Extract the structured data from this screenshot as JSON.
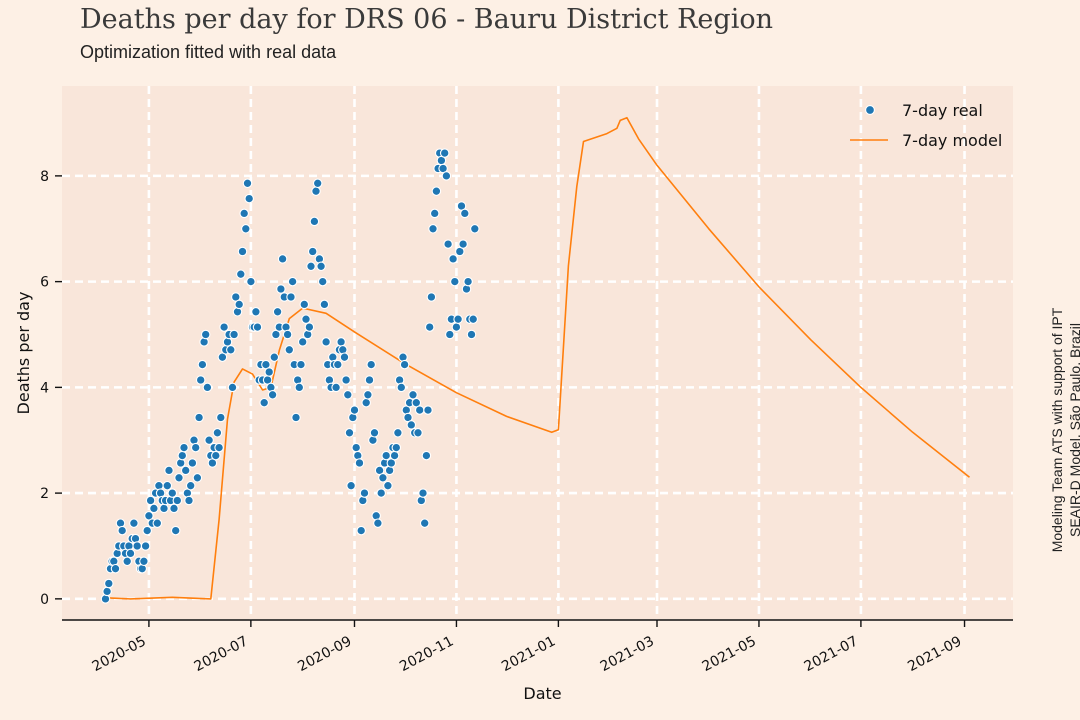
{
  "header": {
    "title": "Deaths per day for DRS 06 - Bauru District Region",
    "subtitle": "Optimization fitted with real data"
  },
  "side_note": {
    "line1": "Modeling Team ATS with support of IPT",
    "line2": "SEAIR-D Model, São Paulo, Brazil"
  },
  "chart_data": {
    "type": "line",
    "xlabel": "Date",
    "ylabel": "Deaths per day",
    "x_ticks": [
      "2020-05",
      "2020-07",
      "2020-09",
      "2020-11",
      "2021-01",
      "2021-03",
      "2021-05",
      "2021-07",
      "2021-09"
    ],
    "y_ticks": [
      0,
      2,
      4,
      6,
      8
    ],
    "xlim": [
      "2020-03-10",
      "2021-09-30"
    ],
    "ylim": [
      -0.4,
      9.7
    ],
    "grid": true,
    "legend_position": "top-right",
    "colors": {
      "real": "#1f77b4",
      "model": "#ff7f0e"
    },
    "series": [
      {
        "name": "7-day real",
        "kind": "scatter",
        "start": "2020-04-05",
        "values": [
          0.0,
          0.14,
          0.29,
          0.57,
          0.71,
          0.71,
          0.57,
          0.86,
          1.0,
          1.43,
          1.29,
          1.0,
          0.86,
          0.71,
          1.0,
          0.86,
          1.14,
          1.43,
          1.14,
          1.0,
          0.71,
          0.57,
          0.57,
          0.71,
          1.0,
          1.29,
          1.57,
          1.86,
          1.43,
          1.71,
          2.0,
          1.43,
          2.14,
          2.0,
          1.86,
          1.71,
          1.86,
          2.14,
          2.43,
          1.86,
          2.0,
          1.71,
          1.29,
          1.86,
          2.29,
          2.57,
          2.71,
          2.86,
          2.43,
          2.0,
          1.86,
          2.14,
          2.57,
          3.0,
          2.86,
          2.29,
          3.43,
          4.14,
          4.43,
          4.86,
          5.0,
          4.0,
          3.0,
          2.71,
          2.57,
          2.86,
          2.71,
          3.14,
          2.86,
          3.43,
          4.57,
          5.14,
          4.71,
          4.86,
          5.0,
          4.71,
          4.0,
          5.0,
          5.71,
          5.43,
          5.57,
          6.14,
          6.57,
          7.29,
          7.0,
          7.86,
          7.57,
          6.0,
          5.14,
          5.14,
          5.43,
          5.14,
          4.14,
          4.43,
          4.14,
          3.71,
          4.43,
          4.14,
          4.29,
          4.0,
          3.86,
          4.57,
          5.0,
          5.43,
          5.14,
          5.86,
          6.43,
          5.71,
          5.14,
          5.0,
          4.71,
          5.71,
          6.0,
          4.43,
          3.43,
          4.14,
          4.0,
          4.43,
          4.86,
          5.57,
          5.29,
          5.0,
          5.14,
          6.29,
          6.57,
          7.14,
          7.71,
          7.86,
          6.43,
          6.29,
          6.0,
          5.57,
          4.86,
          4.43,
          4.14,
          4.0,
          4.57,
          4.43,
          4.0,
          4.43,
          4.71,
          4.86,
          4.71,
          4.57,
          4.14,
          3.86,
          3.14,
          2.14,
          3.43,
          3.57,
          2.86,
          2.71,
          2.57,
          1.29,
          1.86,
          2.0,
          3.71,
          3.86,
          4.14,
          4.43,
          3.0,
          3.14,
          1.57,
          1.43,
          2.43,
          2.0,
          2.29,
          2.57,
          2.71,
          2.14,
          2.43,
          2.57,
          2.86,
          2.71,
          2.86,
          3.14,
          4.14,
          4.0,
          4.57,
          4.43,
          3.57,
          3.43,
          3.71,
          3.29,
          3.86,
          3.14,
          3.71,
          3.14,
          3.57,
          1.86,
          2.0,
          1.43,
          2.71,
          3.57,
          5.14,
          5.71,
          7.0,
          7.29,
          7.71,
          8.14,
          8.43,
          8.29,
          8.14,
          8.43,
          8.0,
          6.71,
          5.0,
          5.29,
          6.43,
          6.0,
          5.14,
          5.29,
          6.57,
          7.43,
          6.71,
          7.29,
          5.86,
          6.0,
          5.29,
          5.0,
          5.29,
          7.0
        ]
      },
      {
        "name": "7-day model",
        "kind": "line",
        "points": [
          [
            "2020-04-05",
            0.02
          ],
          [
            "2020-04-20",
            0.0
          ],
          [
            "2020-05-15",
            0.03
          ],
          [
            "2020-06-07",
            0.0
          ],
          [
            "2020-06-12",
            1.5
          ],
          [
            "2020-06-17",
            3.4
          ],
          [
            "2020-06-21",
            4.1
          ],
          [
            "2020-06-26",
            4.35
          ],
          [
            "2020-07-02",
            4.25
          ],
          [
            "2020-07-08",
            3.95
          ],
          [
            "2020-07-13",
            4.0
          ],
          [
            "2020-07-18",
            4.7
          ],
          [
            "2020-07-24",
            5.3
          ],
          [
            "2020-08-01",
            5.5
          ],
          [
            "2020-08-15",
            5.4
          ],
          [
            "2020-09-01",
            5.05
          ],
          [
            "2020-10-01",
            4.45
          ],
          [
            "2020-11-01",
            3.9
          ],
          [
            "2020-12-01",
            3.45
          ],
          [
            "2020-12-28",
            3.15
          ],
          [
            "2021-01-01",
            3.2
          ],
          [
            "2021-01-07",
            6.3
          ],
          [
            "2021-01-12",
            7.8
          ],
          [
            "2021-01-16",
            8.65
          ],
          [
            "2021-01-30",
            8.8
          ],
          [
            "2021-02-05",
            8.9
          ],
          [
            "2021-02-07",
            9.05
          ],
          [
            "2021-02-11",
            9.1
          ],
          [
            "2021-02-18",
            8.7
          ],
          [
            "2021-03-01",
            8.2
          ],
          [
            "2021-04-01",
            7.0
          ],
          [
            "2021-05-01",
            5.9
          ],
          [
            "2021-06-01",
            4.9
          ],
          [
            "2021-07-01",
            4.0
          ],
          [
            "2021-08-01",
            3.15
          ],
          [
            "2021-09-04",
            2.3
          ]
        ]
      }
    ]
  }
}
